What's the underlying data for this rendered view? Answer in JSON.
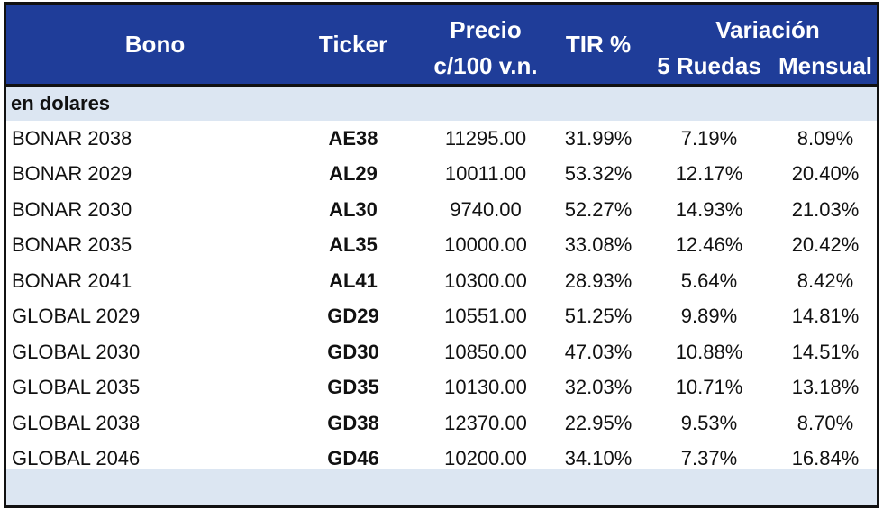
{
  "header": {
    "bono": "Bono",
    "ticker": "Ticker",
    "precio_line1": "Precio",
    "precio_line2": "c/100 v.n.",
    "tir": "TIR %",
    "variacion": "Variación",
    "ruedas": "5 Ruedas",
    "mensual": "Mensual"
  },
  "section_label": "en dolares",
  "rows": [
    {
      "bono": "BONAR 2038",
      "ticker": "AE38",
      "precio": "11295.00",
      "tir": "31.99%",
      "ruedas": "7.19%",
      "mensual": "8.09%"
    },
    {
      "bono": "BONAR 2029",
      "ticker": "AL29",
      "precio": "10011.00",
      "tir": "53.32%",
      "ruedas": "12.17%",
      "mensual": "20.40%"
    },
    {
      "bono": "BONAR 2030",
      "ticker": "AL30",
      "precio": "9740.00",
      "tir": "52.27%",
      "ruedas": "14.93%",
      "mensual": "21.03%"
    },
    {
      "bono": "BONAR 2035",
      "ticker": "AL35",
      "precio": "10000.00",
      "tir": "33.08%",
      "ruedas": "12.46%",
      "mensual": "20.42%"
    },
    {
      "bono": "BONAR 2041",
      "ticker": "AL41",
      "precio": "10300.00",
      "tir": "28.93%",
      "ruedas": "5.64%",
      "mensual": "8.42%"
    },
    {
      "bono": "GLOBAL 2029",
      "ticker": "GD29",
      "precio": "10551.00",
      "tir": "51.25%",
      "ruedas": "9.89%",
      "mensual": "14.81%"
    },
    {
      "bono": "GLOBAL 2030",
      "ticker": "GD30",
      "precio": "10850.00",
      "tir": "47.03%",
      "ruedas": "10.88%",
      "mensual": "14.51%"
    },
    {
      "bono": "GLOBAL 2035",
      "ticker": "GD35",
      "precio": "10130.00",
      "tir": "32.03%",
      "ruedas": "10.71%",
      "mensual": "13.18%"
    },
    {
      "bono": "GLOBAL 2038",
      "ticker": "GD38",
      "precio": "12370.00",
      "tir": "22.95%",
      "ruedas": "9.53%",
      "mensual": "8.70%"
    },
    {
      "bono": "GLOBAL 2046",
      "ticker": "GD46",
      "precio": "10200.00",
      "tir": "34.10%",
      "ruedas": "7.37%",
      "mensual": "16.84%"
    }
  ],
  "colors": {
    "header_bg": "#1f3d99",
    "header_text": "#ffffff",
    "band_bg": "#dce6f2"
  }
}
